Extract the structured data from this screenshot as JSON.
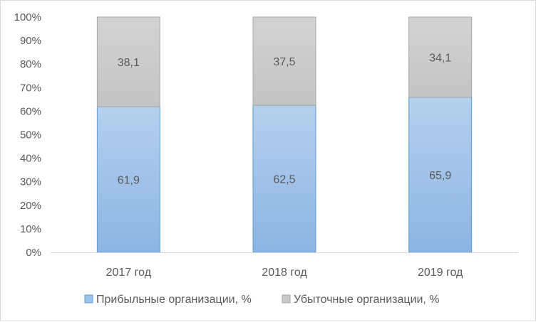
{
  "chart_data": {
    "type": "bar",
    "stacked": true,
    "percent": true,
    "categories": [
      "2017 год",
      "2018 год",
      "2019 год"
    ],
    "series": [
      {
        "name": "Прибыльные организации, %",
        "values": [
          61.9,
          62.5,
          65.9
        ],
        "labels": [
          "61,9",
          "62,5",
          "65,9"
        ],
        "color": "#9dc3e6"
      },
      {
        "name": "Убыточные организации, %",
        "values": [
          38.1,
          37.5,
          34.1
        ],
        "labels": [
          "38,1",
          "37,5",
          "34,1"
        ],
        "color": "#c9c9c9"
      }
    ],
    "y_ticks": [
      "0%",
      "10%",
      "20%",
      "30%",
      "40%",
      "50%",
      "60%",
      "70%",
      "80%",
      "90%",
      "100%"
    ],
    "ylim": [
      0,
      100
    ],
    "legend": "bottom",
    "grid": false
  }
}
